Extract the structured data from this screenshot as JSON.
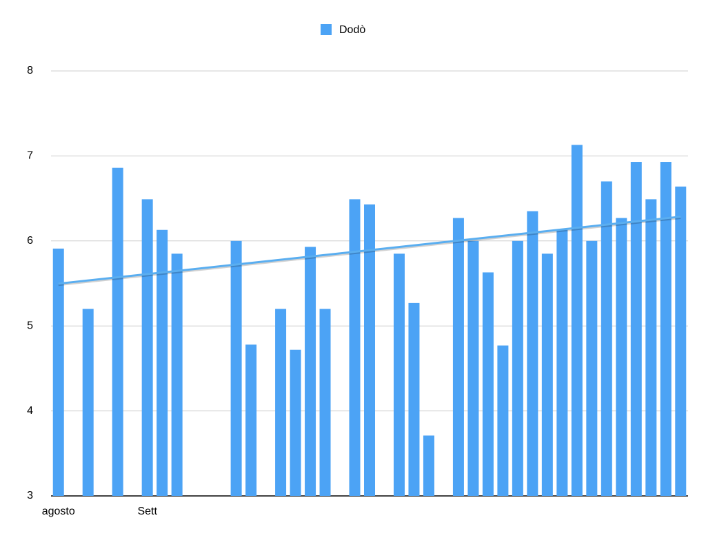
{
  "chart_data": {
    "type": "bar",
    "categories": [
      "agosto",
      null,
      null,
      null,
      null,
      null,
      "Sett",
      null,
      null,
      null,
      null,
      null,
      null,
      null,
      null,
      null,
      null,
      null,
      null,
      null,
      null,
      null,
      null,
      null,
      null,
      null,
      null,
      null,
      null,
      null,
      null,
      null,
      null,
      null,
      null,
      null,
      null,
      null,
      null,
      null,
      null,
      null,
      null
    ],
    "series": [
      {
        "name": "Dodò",
        "color": "#4ca3f5",
        "values": [
          5.91,
          null,
          5.2,
          null,
          6.86,
          null,
          6.49,
          6.13,
          5.85,
          null,
          null,
          null,
          6.0,
          4.78,
          null,
          5.2,
          4.72,
          5.93,
          5.2,
          null,
          6.49,
          6.43,
          null,
          5.85,
          5.27,
          3.71,
          null,
          6.27,
          6.0,
          5.63,
          4.77,
          6.0,
          6.35,
          5.85,
          6.13,
          7.13,
          6.0,
          6.7,
          6.27,
          6.93,
          6.49,
          6.93,
          6.64
        ]
      }
    ],
    "trendline": "linear",
    "trendline_color": "#5aaef0",
    "ylim": [
      3,
      8
    ],
    "yticks": [
      3,
      4,
      5,
      6,
      7,
      8
    ],
    "grid": true,
    "legend": "top"
  }
}
